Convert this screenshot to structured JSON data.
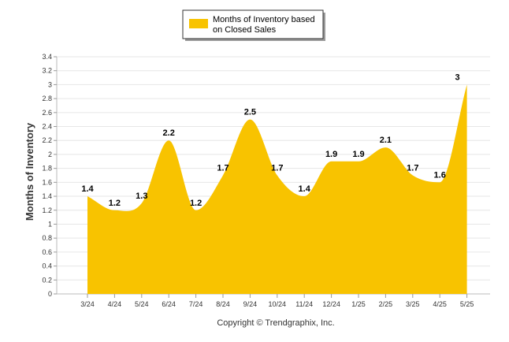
{
  "chart_data": {
    "type": "area",
    "categories": [
      "3/24",
      "4/24",
      "5/24",
      "6/24",
      "7/24",
      "8/24",
      "9/24",
      "10/24",
      "11/24",
      "12/24",
      "1/25",
      "2/25",
      "3/25",
      "4/25",
      "5/25"
    ],
    "series": [
      {
        "name_lines": [
          "Months of Inventory based",
          "on Closed Sales"
        ],
        "values": [
          1.4,
          1.2,
          1.3,
          2.2,
          1.2,
          1.7,
          2.5,
          1.7,
          1.4,
          1.9,
          1.9,
          2.1,
          1.7,
          1.6,
          3
        ],
        "data_labels": [
          "1.4",
          "1.2",
          "1.3",
          "2.2",
          "1.2",
          "1.7",
          "2.5",
          "1.7",
          "1.4",
          "1.9",
          "1.9",
          "2.1",
          "1.7",
          "1.6",
          "3"
        ]
      }
    ],
    "ylabel": "Months of Inventory",
    "ylim": [
      0,
      3.4
    ],
    "yticks": [
      "0",
      "0.2",
      "0.4",
      "0.6",
      "0.8",
      "1",
      "1.2",
      "1.4",
      "1.6",
      "1.8",
      "2",
      "2.2",
      "2.4",
      "2.6",
      "2.8",
      "3",
      "3.2",
      "3.4"
    ],
    "grid": true,
    "legend_position": "top-center",
    "color": "#f8c300",
    "footer": "Copyright © Trendgraphix, Inc."
  }
}
